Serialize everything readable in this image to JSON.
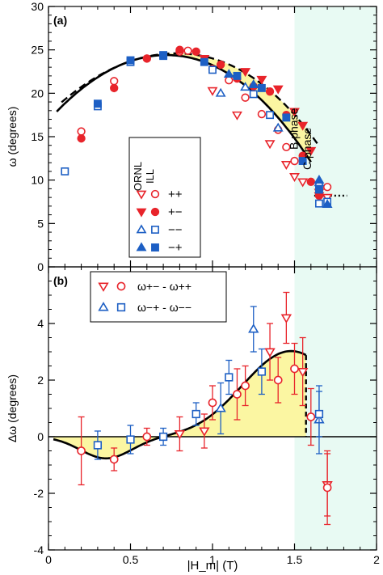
{
  "chart_data": [
    {
      "type": "scatter",
      "panel_label": "(a)",
      "ylabel": "ω (degrees)",
      "xlim": [
        0,
        2
      ],
      "ylim": [
        0,
        30
      ],
      "xticks": [
        0,
        0.5,
        1,
        1.5,
        2
      ],
      "xtick_labels": [
        "0",
        "0.5",
        "1",
        "1.5",
        "2"
      ],
      "yticks": [
        0,
        5,
        10,
        15,
        20,
        25,
        30
      ],
      "ytick_labels": [
        "0",
        "5",
        "10",
        "15",
        "20",
        "25",
        "30"
      ],
      "phase_labels": [
        "B phase",
        "C phase"
      ],
      "legend": {
        "placement": "left-center",
        "columns": [
          "ORNL",
          "ILL"
        ],
        "rows": [
          "++",
          "+−",
          "−−",
          "−+"
        ]
      },
      "colors": {
        "red": "#e8242b",
        "blue": "#1d5fc4",
        "shade": "#fbf6a2",
        "cphase": "#e8faf3"
      },
      "series": [
        {
          "name": "++",
          "symbol": "open-down-triangle",
          "color": "#e8242b",
          "points": [
            [
              1.0,
              20.3
            ],
            [
              1.15,
              17.5
            ],
            [
              1.35,
              14.2
            ],
            [
              1.45,
              11.8
            ],
            [
              1.5,
              10.4
            ],
            [
              1.55,
              9.8
            ],
            [
              1.65,
              8.6
            ],
            [
              1.7,
              8.0
            ]
          ]
        },
        {
          "name": "++",
          "symbol": "open-circle",
          "color": "#e8242b",
          "points": [
            [
              0.2,
              15.6
            ],
            [
              0.4,
              21.4
            ],
            [
              0.6,
              24.0
            ],
            [
              0.8,
              24.8
            ],
            [
              0.85,
              24.9
            ],
            [
              1.0,
              22.8
            ],
            [
              1.1,
              21.5
            ],
            [
              1.2,
              19.5
            ],
            [
              1.3,
              17.6
            ],
            [
              1.4,
              15.8
            ],
            [
              1.45,
              13.8
            ],
            [
              1.5,
              12.2
            ],
            [
              1.7,
              9.2
            ]
          ]
        },
        {
          "name": "+−",
          "symbol": "filled-down-triangle",
          "color": "#e8242b",
          "points": [
            [
              0.95,
              24.0
            ],
            [
              1.2,
              22.5
            ],
            [
              1.3,
              21.6
            ],
            [
              1.4,
              20.5
            ],
            [
              1.5,
              17.9
            ],
            [
              1.55,
              16.3
            ],
            [
              1.6,
              13.4
            ],
            [
              1.65,
              8.2
            ]
          ]
        },
        {
          "name": "+−",
          "symbol": "filled-circle",
          "color": "#e8242b",
          "points": [
            [
              0.2,
              14.8
            ],
            [
              0.4,
              20.6
            ],
            [
              0.6,
              24.0
            ],
            [
              0.8,
              25.0
            ],
            [
              0.9,
              24.8
            ],
            [
              1.05,
              23.3
            ],
            [
              1.15,
              21.7
            ],
            [
              1.25,
              20.8
            ],
            [
              1.35,
              20.2
            ],
            [
              1.45,
              17.5
            ],
            [
              1.55,
              12.8
            ],
            [
              1.6,
              9.8
            ],
            [
              1.65,
              8.2
            ]
          ]
        },
        {
          "name": "−−",
          "symbol": "open-up-triangle",
          "color": "#1d5fc4",
          "points": [
            [
              1.05,
              20.0
            ],
            [
              1.2,
              20.7
            ],
            [
              1.4,
              16.0
            ],
            [
              1.65,
              9.7
            ]
          ]
        },
        {
          "name": "−−",
          "symbol": "open-square",
          "color": "#1d5fc4",
          "points": [
            [
              0.1,
              11.0
            ],
            [
              0.3,
              18.5
            ],
            [
              0.5,
              23.6
            ],
            [
              0.7,
              24.3
            ],
            [
              1.0,
              22.7
            ],
            [
              1.25,
              19.9
            ],
            [
              1.35,
              17.5
            ],
            [
              1.65,
              7.3
            ],
            [
              1.7,
              7.5
            ]
          ]
        },
        {
          "name": "−+",
          "symbol": "filled-up-triangle",
          "color": "#1d5fc4",
          "points": [
            [
              1.1,
              22.2
            ],
            [
              1.25,
              21.0
            ],
            [
              1.65,
              10.0
            ],
            [
              1.7,
              7.2
            ]
          ]
        },
        {
          "name": "−+",
          "symbol": "filled-square",
          "color": "#1d5fc4",
          "points": [
            [
              0.3,
              18.8
            ],
            [
              0.5,
              23.8
            ],
            [
              0.7,
              24.4
            ],
            [
              0.95,
              23.6
            ],
            [
              1.15,
              22.0
            ],
            [
              1.3,
              20.6
            ],
            [
              1.45,
              17.2
            ],
            [
              1.55,
              12.2
            ],
            [
              1.65,
              8.9
            ]
          ]
        }
      ]
    },
    {
      "type": "scatter",
      "panel_label": "(b)",
      "xlabel": "|H_m| (T)",
      "ylabel": "Δω (degrees)",
      "xlim": [
        0,
        2
      ],
      "ylim": [
        -4,
        6
      ],
      "xticks": [
        0,
        0.5,
        1,
        1.5,
        2
      ],
      "xtick_labels": [
        "0",
        "0.5",
        "1",
        "1.5",
        "2"
      ],
      "yticks": [
        -4,
        -2,
        0,
        2,
        4
      ],
      "ytick_labels": [
        "-4",
        "-2",
        "0",
        "2",
        "4"
      ],
      "legend": {
        "placement": "top-left",
        "entries": [
          "ω+− - ω++",
          "ω−+ - ω−−"
        ]
      },
      "series": [
        {
          "name": "ω+− - ω++",
          "symbol": "open-down-triangle",
          "color": "#e8242b",
          "points": [
            [
              0.8,
              0.1,
              0.6
            ],
            [
              0.95,
              0.2,
              0.6
            ],
            [
              1.35,
              3.0,
              1.0
            ],
            [
              1.45,
              4.2,
              0.9
            ],
            [
              1.55,
              2.3,
              1.2
            ],
            [
              1.7,
              -1.7,
              1.1
            ]
          ]
        },
        {
          "name": "ω+− - ω++",
          "symbol": "open-circle",
          "color": "#e8242b",
          "points": [
            [
              0.2,
              -0.5,
              1.2
            ],
            [
              0.4,
              -0.8,
              0.4
            ],
            [
              0.6,
              0.0,
              0.3
            ],
            [
              1.0,
              1.2,
              0.6
            ],
            [
              1.15,
              1.5,
              0.9
            ],
            [
              1.2,
              1.8,
              0.7
            ],
            [
              1.4,
              2.0,
              0.8
            ],
            [
              1.5,
              2.4,
              0.9
            ],
            [
              1.6,
              0.7,
              1.0
            ],
            [
              1.7,
              -1.8,
              1.3
            ]
          ]
        },
        {
          "name": "ω−+ - ω−−",
          "symbol": "open-up-triangle",
          "color": "#1d5fc4",
          "points": [
            [
              1.05,
              1.0,
              0.9
            ],
            [
              1.25,
              3.8,
              0.8
            ],
            [
              1.65,
              0.6,
              1.2
            ]
          ]
        },
        {
          "name": "ω−+ - ω−−",
          "symbol": "open-square",
          "color": "#1d5fc4",
          "points": [
            [
              0.3,
              -0.3,
              0.5
            ],
            [
              0.5,
              -0.1,
              0.5
            ],
            [
              0.7,
              0.0,
              0.3
            ],
            [
              0.9,
              0.8,
              0.4
            ],
            [
              1.1,
              2.1,
              0.6
            ],
            [
              1.3,
              2.3,
              0.8
            ],
            [
              1.65,
              0.8,
              0.8
            ]
          ]
        }
      ]
    }
  ]
}
